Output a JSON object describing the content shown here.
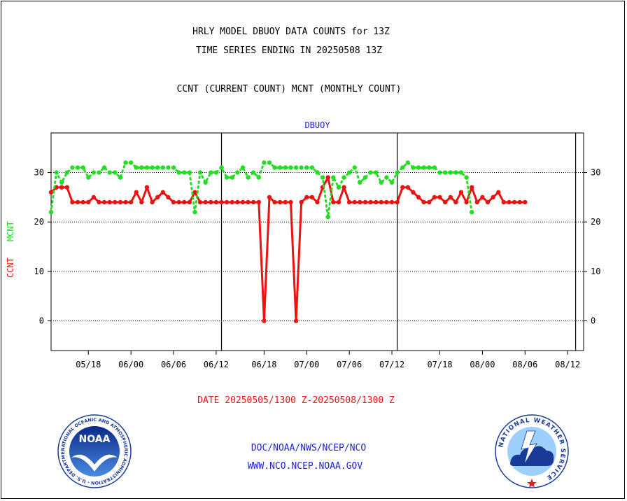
{
  "header": {
    "title_line1": "HRLY MODEL DBUOY DATA COUNTS for 13Z",
    "title_line2": "TIME SERIES ENDING IN 20250508 13Z",
    "subtitle": "CCNT (CURRENT COUNT) MCNT (MONTHLY COUNT)"
  },
  "footer": {
    "date_range": "DATE 20250505/1300 Z-20250508/1300 Z",
    "org_path": "DOC/NOAA/NWS/NCEP/NCO",
    "website": "WWW.NCO.NCEP.NOAA.GOV"
  },
  "logos": {
    "left_seal_text": "NATIONAL OCEANIC AND ATMOSPHERIC ADMINISTRATION · U.S. DEPARTMENT OF COMMERCE",
    "left_seal_center": "NOAA",
    "right_seal_text": "NATIONAL WEATHER SERVICE"
  },
  "colors": {
    "ccnt": "#ee1111",
    "mcnt": "#22dd22",
    "label_blue": "#2222cc",
    "footer_red": "#ee1111"
  },
  "chart_data": {
    "type": "line",
    "title": "DBUOY",
    "ylabel_left_ccnt": "CCNT",
    "ylabel_left_mcnt": "MCNT",
    "ylim": [
      -6,
      38
    ],
    "y_ticks": [
      0,
      10,
      20,
      30
    ],
    "x_range": [
      0,
      100
    ],
    "x_ticks": [
      {
        "x": 7,
        "label": "05/18"
      },
      {
        "x": 15,
        "label": "06/00"
      },
      {
        "x": 23,
        "label": "06/06"
      },
      {
        "x": 31,
        "label": "06/12"
      },
      {
        "x": 40,
        "label": "06/18"
      },
      {
        "x": 48,
        "label": "07/00"
      },
      {
        "x": 56,
        "label": "07/06"
      },
      {
        "x": 64,
        "label": "07/12"
      },
      {
        "x": 73,
        "label": "07/18"
      },
      {
        "x": 81,
        "label": "08/00"
      },
      {
        "x": 89,
        "label": "08/06"
      },
      {
        "x": 97,
        "label": "08/12"
      }
    ],
    "day_boundaries": [
      32,
      65,
      98.5
    ],
    "grid": true,
    "series": [
      {
        "name": "CCNT",
        "style": "solid",
        "points": [
          [
            0,
            26
          ],
          [
            1,
            27
          ],
          [
            2,
            27
          ],
          [
            3,
            27
          ],
          [
            4,
            24
          ],
          [
            5,
            24
          ],
          [
            6,
            24
          ],
          [
            7,
            24
          ],
          [
            8,
            25
          ],
          [
            9,
            24
          ],
          [
            10,
            24
          ],
          [
            11,
            24
          ],
          [
            12,
            24
          ],
          [
            13,
            24
          ],
          [
            14,
            24
          ],
          [
            15,
            24
          ],
          [
            16,
            26
          ],
          [
            17,
            24
          ],
          [
            18,
            27
          ],
          [
            19,
            24
          ],
          [
            20,
            25
          ],
          [
            21,
            26
          ],
          [
            22,
            25
          ],
          [
            23,
            24
          ],
          [
            24,
            24
          ],
          [
            25,
            24
          ],
          [
            26,
            24
          ],
          [
            27,
            26
          ],
          [
            28,
            24
          ],
          [
            29,
            24
          ],
          [
            30,
            24
          ],
          [
            31,
            24
          ],
          [
            32,
            24
          ],
          [
            33,
            24
          ],
          [
            34,
            24
          ],
          [
            35,
            24
          ],
          [
            36,
            24
          ],
          [
            37,
            24
          ],
          [
            38,
            24
          ],
          [
            39,
            24
          ],
          [
            40,
            0
          ],
          [
            41,
            25
          ],
          [
            42,
            24
          ],
          [
            43,
            24
          ],
          [
            44,
            24
          ],
          [
            45,
            24
          ],
          [
            46,
            0
          ],
          [
            47,
            24
          ],
          [
            48,
            25
          ],
          [
            49,
            25
          ],
          [
            50,
            24
          ],
          [
            51,
            27
          ],
          [
            52,
            29
          ],
          [
            53,
            24
          ],
          [
            54,
            24
          ],
          [
            55,
            27
          ],
          [
            56,
            24
          ],
          [
            57,
            24
          ],
          [
            58,
            24
          ],
          [
            59,
            24
          ],
          [
            60,
            24
          ],
          [
            61,
            24
          ],
          [
            62,
            24
          ],
          [
            63,
            24
          ],
          [
            64,
            24
          ],
          [
            65,
            24
          ],
          [
            66,
            27
          ],
          [
            67,
            27
          ],
          [
            68,
            26
          ],
          [
            69,
            25
          ],
          [
            70,
            24
          ],
          [
            71,
            24
          ],
          [
            72,
            25
          ],
          [
            73,
            25
          ],
          [
            74,
            24
          ],
          [
            75,
            25
          ],
          [
            76,
            24
          ],
          [
            77,
            26
          ],
          [
            78,
            24
          ],
          [
            79,
            27
          ],
          [
            80,
            24
          ],
          [
            81,
            25
          ],
          [
            82,
            24
          ],
          [
            83,
            25
          ],
          [
            84,
            26
          ],
          [
            85,
            24
          ],
          [
            86,
            24
          ],
          [
            87,
            24
          ],
          [
            88,
            24
          ],
          [
            89,
            24
          ]
        ]
      },
      {
        "name": "MCNT",
        "style": "dotted",
        "points": [
          [
            0,
            22
          ],
          [
            1,
            30
          ],
          [
            2,
            28
          ],
          [
            3,
            30
          ],
          [
            4,
            31
          ],
          [
            5,
            31
          ],
          [
            6,
            31
          ],
          [
            7,
            29
          ],
          [
            8,
            30
          ],
          [
            9,
            30
          ],
          [
            10,
            31
          ],
          [
            11,
            30
          ],
          [
            12,
            30
          ],
          [
            13,
            29
          ],
          [
            14,
            32
          ],
          [
            15,
            32
          ],
          [
            16,
            31
          ],
          [
            17,
            31
          ],
          [
            18,
            31
          ],
          [
            19,
            31
          ],
          [
            20,
            31
          ],
          [
            21,
            31
          ],
          [
            22,
            31
          ],
          [
            23,
            31
          ],
          [
            24,
            30
          ],
          [
            25,
            30
          ],
          [
            26,
            30
          ],
          [
            27,
            22
          ],
          [
            28,
            30
          ],
          [
            29,
            28
          ],
          [
            30,
            30
          ],
          [
            31,
            30
          ],
          [
            32,
            31
          ],
          [
            33,
            29
          ],
          [
            34,
            29
          ],
          [
            35,
            30
          ],
          [
            36,
            31
          ],
          [
            37,
            29
          ],
          [
            38,
            30
          ],
          [
            39,
            29
          ],
          [
            40,
            32
          ],
          [
            41,
            32
          ],
          [
            42,
            31
          ],
          [
            43,
            31
          ],
          [
            44,
            31
          ],
          [
            45,
            31
          ],
          [
            46,
            31
          ],
          [
            47,
            31
          ],
          [
            48,
            31
          ],
          [
            49,
            31
          ],
          [
            50,
            30
          ],
          [
            51,
            29
          ],
          [
            52,
            21
          ],
          [
            53,
            29
          ],
          [
            54,
            27
          ],
          [
            55,
            29
          ],
          [
            56,
            30
          ],
          [
            57,
            31
          ],
          [
            58,
            28
          ],
          [
            59,
            29
          ],
          [
            60,
            30
          ],
          [
            61,
            30
          ],
          [
            62,
            28
          ],
          [
            63,
            29
          ],
          [
            64,
            28
          ],
          [
            65,
            30
          ],
          [
            66,
            31
          ],
          [
            67,
            32
          ],
          [
            68,
            31
          ],
          [
            69,
            31
          ],
          [
            70,
            31
          ],
          [
            71,
            31
          ],
          [
            72,
            31
          ],
          [
            73,
            30
          ],
          [
            74,
            30
          ],
          [
            75,
            30
          ],
          [
            76,
            30
          ],
          [
            77,
            30
          ],
          [
            78,
            29
          ],
          [
            79,
            22
          ]
        ]
      }
    ]
  }
}
